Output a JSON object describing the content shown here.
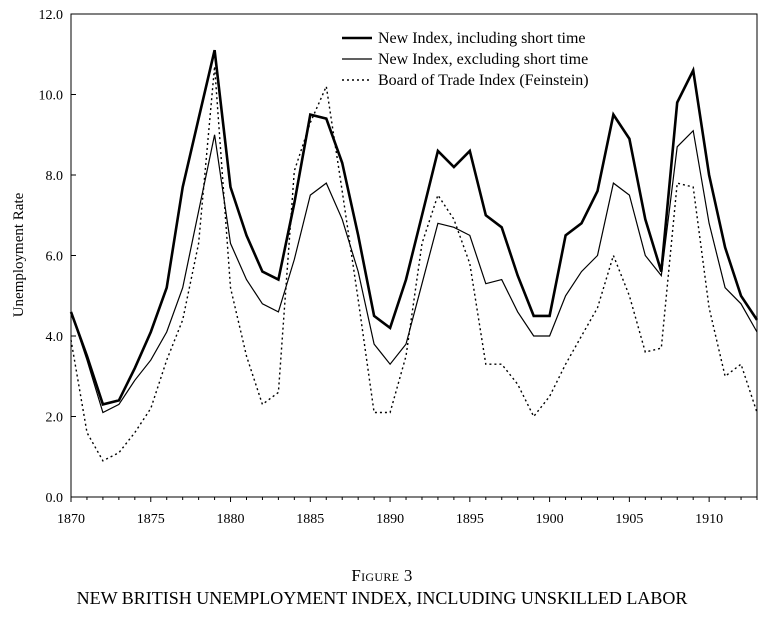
{
  "figure": {
    "label": "Figure 3",
    "title": "NEW BRITISH UNEMPLOYMENT INDEX, INCLUDING UNSKILLED LABOR"
  },
  "chart_data": {
    "type": "line",
    "ylabel": "Unemployment Rate",
    "xlabel": "",
    "xlim": [
      1870,
      1913
    ],
    "ylim": [
      0,
      12
    ],
    "x_ticks": [
      1870,
      1875,
      1880,
      1885,
      1890,
      1895,
      1900,
      1905,
      1910
    ],
    "x_tick_labels": [
      "1870",
      "1875",
      "1880",
      "1885",
      "1890",
      "1895",
      "1900",
      "1905",
      "1910"
    ],
    "y_ticks": [
      0,
      2,
      4,
      6,
      8,
      10,
      12
    ],
    "y_tick_labels": [
      "0.0",
      "2.0",
      "4.0",
      "6.0",
      "8.0",
      "10.0",
      "12.0"
    ],
    "legend_position": "top-right",
    "grid": false,
    "x": [
      1870,
      1871,
      1872,
      1873,
      1874,
      1875,
      1876,
      1877,
      1878,
      1879,
      1880,
      1881,
      1882,
      1883,
      1884,
      1885,
      1886,
      1887,
      1888,
      1889,
      1890,
      1891,
      1892,
      1893,
      1894,
      1895,
      1896,
      1897,
      1898,
      1899,
      1900,
      1901,
      1902,
      1903,
      1904,
      1905,
      1906,
      1907,
      1908,
      1909,
      1910,
      1911,
      1912,
      1913
    ],
    "series": [
      {
        "name": "New Index, including short time",
        "style": "thick",
        "values": [
          4.6,
          3.5,
          2.3,
          2.4,
          3.2,
          4.1,
          5.2,
          7.7,
          9.4,
          11.1,
          7.7,
          6.5,
          5.6,
          5.4,
          7.3,
          9.5,
          9.4,
          8.3,
          6.5,
          4.5,
          4.2,
          5.4,
          7.0,
          8.6,
          8.2,
          8.6,
          7.0,
          6.7,
          5.5,
          4.5,
          4.5,
          6.5,
          6.8,
          7.6,
          9.5,
          8.9,
          6.9,
          5.6,
          9.8,
          10.6,
          8.0,
          6.2,
          5.0,
          4.4
        ]
      },
      {
        "name": "New Index, excluding short time",
        "style": "thin",
        "values": [
          4.6,
          3.4,
          2.1,
          2.3,
          2.9,
          3.4,
          4.1,
          5.2,
          7.1,
          9.0,
          6.3,
          5.4,
          4.8,
          4.6,
          5.9,
          7.5,
          7.8,
          6.9,
          5.6,
          3.8,
          3.3,
          3.8,
          5.3,
          6.8,
          6.7,
          6.5,
          5.3,
          5.4,
          4.6,
          4.0,
          4.0,
          5.0,
          5.6,
          6.0,
          7.8,
          7.5,
          6.0,
          5.5,
          8.7,
          9.1,
          6.8,
          5.2,
          4.8,
          4.1
        ]
      },
      {
        "name": "Board of Trade Index (Feinstein)",
        "style": "dotted",
        "values": [
          3.9,
          1.6,
          0.9,
          1.1,
          1.6,
          2.2,
          3.4,
          4.4,
          6.3,
          10.7,
          5.2,
          3.5,
          2.3,
          2.6,
          8.1,
          9.3,
          10.2,
          7.6,
          4.9,
          2.1,
          2.1,
          3.5,
          6.3,
          7.5,
          6.9,
          5.8,
          3.3,
          3.3,
          2.8,
          2.0,
          2.5,
          3.3,
          4.0,
          4.7,
          6.0,
          5.0,
          3.6,
          3.7,
          7.8,
          7.7,
          4.7,
          3.0,
          3.3,
          2.1
        ]
      }
    ]
  }
}
